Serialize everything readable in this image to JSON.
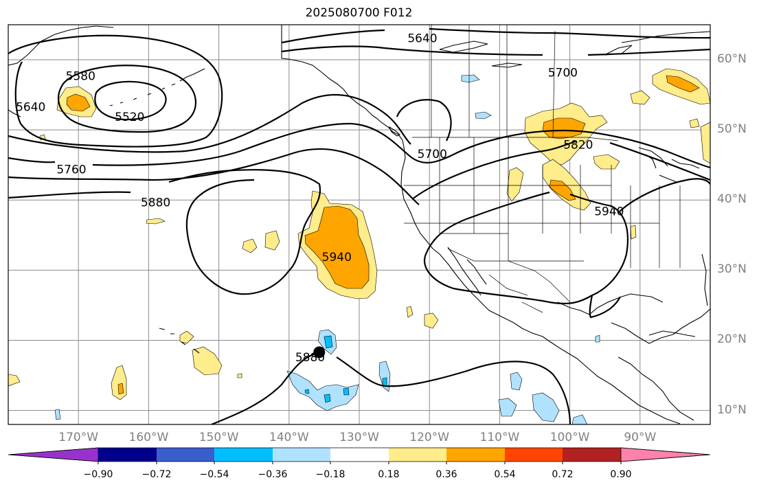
{
  "title": "2025080700 F012",
  "map": {
    "lon_range": [
      -180,
      -80
    ],
    "lat_range": [
      8,
      65
    ],
    "lon_ticks": [
      "170°W",
      "160°W",
      "150°W",
      "140°W",
      "130°W",
      "120°W",
      "110°W",
      "100°W",
      "90°W"
    ],
    "lat_ticks": [
      "60°N",
      "50°N",
      "40°N",
      "30°N",
      "20°N",
      "10°N"
    ],
    "gridlines": true,
    "contour_color": "#000000",
    "contour_labels": [
      {
        "text": "5640",
        "lon": -121.0,
        "lat": 63.1
      },
      {
        "text": "5700",
        "lon": -101.0,
        "lat": 58.2
      },
      {
        "text": "5580",
        "lon": -169.7,
        "lat": 57.7
      },
      {
        "text": "5640",
        "lon": -176.8,
        "lat": 53.3
      },
      {
        "text": "5520",
        "lon": -162.7,
        "lat": 51.9
      },
      {
        "text": "5700",
        "lon": -119.6,
        "lat": 46.6
      },
      {
        "text": "5820",
        "lon": -98.8,
        "lat": 47.9
      },
      {
        "text": "5760",
        "lon": -171.0,
        "lat": 44.4
      },
      {
        "text": "5880",
        "lon": -159.0,
        "lat": 39.7
      },
      {
        "text": "5940",
        "lon": -94.4,
        "lat": 38.4
      },
      {
        "text": "5940",
        "lon": -133.2,
        "lat": 31.9
      },
      {
        "text": "5880",
        "lon": -137.0,
        "lat": 17.6
      }
    ],
    "marker": {
      "lon": -135.7,
      "lat": 18.3,
      "color": "#000000",
      "name": "black-dot-marker"
    }
  },
  "colorbar": {
    "colors": [
      "#9932cc",
      "#00008b",
      "#3a5fcd",
      "#00bfff",
      "#b0e2ff",
      "#ffffff",
      "#ffec8b",
      "#ffa500",
      "#ff4500",
      "#b22222",
      "#ff82ab"
    ],
    "tick_labels": [
      "−0.90",
      "−0.72",
      "−0.54",
      "−0.36",
      "−0.18",
      "0.18",
      "0.36",
      "0.54",
      "0.72",
      "0.90"
    ],
    "extend": "both"
  }
}
